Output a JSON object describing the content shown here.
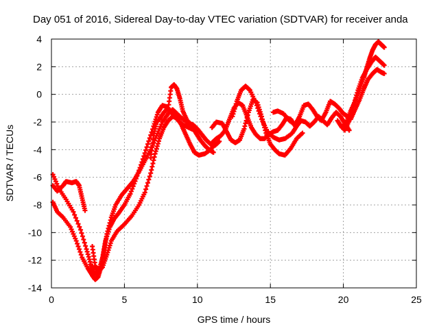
{
  "chart_data": {
    "type": "scatter",
    "title": "Day 051 of 2016, Sidereal Day-to-day VTEC variation (SDTVAR) for receiver anda",
    "xlabel": "GPS time / hours",
    "ylabel": "SDTVAR / TECUs",
    "xlim": [
      0,
      25
    ],
    "ylim": [
      -14,
      4
    ],
    "xticks": [
      0,
      5,
      10,
      15,
      20,
      25
    ],
    "yticks": [
      -14,
      -12,
      -10,
      -8,
      -6,
      -4,
      -2,
      0,
      2,
      4
    ],
    "grid": true,
    "marker": "plus",
    "color": "#ff0000",
    "series": [
      {
        "x": [
          0.1,
          0.4,
          0.8,
          1.0,
          1.4,
          1.7,
          1.9,
          2.1,
          2.3
        ],
        "y": [
          -6.6,
          -7.0,
          -6.6,
          -6.3,
          -6.4,
          -6.3,
          -6.6,
          -7.5,
          -8.4
        ]
      },
      {
        "x": [
          0.1,
          0.4,
          0.8,
          1.3,
          1.7,
          2.1,
          2.5,
          2.8,
          3.0,
          3.2,
          3.4,
          3.6,
          3.8,
          4.1,
          4.4,
          4.8,
          5.2,
          5.6,
          6.0,
          6.4,
          6.8,
          7.2,
          7.6,
          8.0,
          8.3,
          8.6,
          9.0,
          9.4,
          9.7,
          10.0,
          10.3,
          10.6,
          10.9,
          11.2,
          11.5
        ],
        "y": [
          -7.8,
          -8.5,
          -8.9,
          -9.6,
          -10.6,
          -11.8,
          -12.6,
          -13.1,
          -13.4,
          -13.2,
          -12.5,
          -11.3,
          -10.1,
          -8.9,
          -8.0,
          -7.3,
          -6.8,
          -6.3,
          -5.6,
          -4.8,
          -4.0,
          -3.0,
          -2.0,
          -1.4,
          -1.1,
          -1.4,
          -1.8,
          -2.1,
          -2.2,
          -2.5,
          -2.9,
          -3.3,
          -3.6,
          -3.7,
          -3.4
        ]
      },
      {
        "x": [
          0.1,
          0.5,
          1.0,
          1.5,
          2.0,
          2.4,
          2.7,
          2.9,
          3.1,
          3.3,
          3.5,
          3.7,
          4.0,
          4.3,
          4.6,
          5.0,
          5.4,
          5.8,
          6.2,
          6.6,
          7.0,
          7.3,
          7.6,
          7.9,
          8.2,
          8.6,
          9.0,
          9.4,
          9.8
        ],
        "y": [
          -5.8,
          -6.8,
          -7.6,
          -8.5,
          -9.8,
          -11.2,
          -12.3,
          -12.9,
          -13.0,
          -12.6,
          -11.8,
          -10.6,
          -9.6,
          -9.0,
          -8.6,
          -8.0,
          -7.2,
          -6.1,
          -4.9,
          -3.6,
          -2.3,
          -1.3,
          -0.8,
          -0.9,
          -1.3,
          -1.8,
          -2.2,
          -2.4,
          -2.6
        ]
      },
      {
        "x": [
          2.8,
          3.0,
          3.2,
          3.5,
          3.8,
          4.1,
          4.5,
          5.0,
          5.5,
          6.0,
          6.4,
          6.8,
          7.1,
          7.4,
          7.7,
          8.0,
          8.3,
          8.6,
          8.9,
          9.2,
          9.5,
          9.8,
          10.1,
          10.5,
          10.9,
          11.2
        ],
        "y": [
          -11.0,
          -12.4,
          -12.8,
          -12.5,
          -11.6,
          -10.6,
          -9.9,
          -9.4,
          -8.8,
          -8.0,
          -7.1,
          -5.7,
          -4.3,
          -3.2,
          -2.4,
          -1.9,
          -1.6,
          -1.7,
          -2.2,
          -2.9,
          -3.6,
          -4.2,
          -4.4,
          -4.3,
          -4.0,
          -3.6
        ]
      },
      {
        "x": [
          6.8,
          7.0,
          7.2,
          7.4,
          7.7,
          8.0,
          8.2,
          8.4,
          8.6,
          8.8,
          9.0,
          9.3,
          9.6,
          9.9,
          10.2,
          10.5,
          10.8,
          11.1
        ],
        "y": [
          -4.6,
          -3.0,
          -2.0,
          -1.8,
          -1.3,
          -1.0,
          0.5,
          0.7,
          0.4,
          -0.3,
          -1.2,
          -1.9,
          -2.2,
          -2.8,
          -3.3,
          -3.7,
          -4.0,
          -4.2
        ]
      },
      {
        "x": [
          11.0,
          11.3,
          11.6,
          11.9,
          12.2,
          12.5,
          12.8,
          13.1,
          13.4,
          13.7,
          14.0,
          14.3,
          14.6,
          14.9,
          15.2,
          15.5,
          15.8,
          16.1,
          16.4,
          16.7
        ],
        "y": [
          -3.5,
          -3.2,
          -3.0,
          -2.6,
          -1.8,
          -1.0,
          -0.6,
          -0.8,
          -1.6,
          -2.4,
          -2.9,
          -3.2,
          -3.2,
          -2.9,
          -2.7,
          -2.6,
          -2.2,
          -1.7,
          -1.8,
          -2.3
        ]
      },
      {
        "x": [
          11.0,
          11.3,
          11.7,
          12.0,
          12.3,
          12.6,
          12.9,
          13.2,
          13.5,
          13.8,
          14.1,
          14.4,
          14.7,
          15.0,
          15.3,
          15.6,
          16.0,
          16.4,
          16.8,
          17.2
        ],
        "y": [
          -2.4,
          -2.0,
          -2.1,
          -2.7,
          -3.3,
          -3.5,
          -3.3,
          -2.5,
          -1.3,
          -0.4,
          -0.6,
          -1.6,
          -2.8,
          -3.6,
          -4.0,
          -4.3,
          -4.4,
          -3.9,
          -3.2,
          -2.8
        ]
      },
      {
        "x": [
          12.4,
          12.7,
          13.0,
          13.3,
          13.6,
          14.0,
          14.4,
          14.8,
          15.2,
          15.6,
          16.0,
          16.4
        ],
        "y": [
          -1.6,
          -0.5,
          0.3,
          0.6,
          0.3,
          -0.6,
          -1.8,
          -2.7,
          -3.1,
          -3.3,
          -3.2,
          -2.9
        ]
      },
      {
        "x": [
          15.2,
          15.5,
          15.9,
          16.3,
          16.7,
          17.0,
          17.3,
          17.6,
          17.9,
          18.2,
          18.5,
          18.8,
          19.1,
          19.4,
          19.7,
          20.0,
          20.3
        ],
        "y": [
          -1.3,
          -1.2,
          -1.4,
          -1.9,
          -2.2,
          -1.6,
          -0.8,
          -0.7,
          -1.1,
          -1.6,
          -1.9,
          -1.3,
          -0.5,
          -0.7,
          -1.0,
          -1.4,
          -1.6
        ]
      },
      {
        "x": [
          16.5,
          16.8,
          17.1,
          17.4,
          17.7,
          18.0,
          18.3,
          18.6,
          18.9,
          19.2,
          19.5,
          19.8,
          20.1,
          20.4
        ],
        "y": [
          -2.8,
          -2.3,
          -1.9,
          -2.0,
          -2.3,
          -2.0,
          -1.6,
          -1.9,
          -2.2,
          -1.7,
          -1.3,
          -1.6,
          -2.1,
          -2.6
        ]
      },
      {
        "x": [
          19.6,
          19.9,
          20.2,
          20.5,
          20.8,
          21.1,
          21.4,
          21.6,
          21.8,
          22.0,
          22.2,
          22.4,
          22.6,
          22.8
        ],
        "y": [
          -1.9,
          -2.4,
          -2.0,
          -1.2,
          -0.5,
          0.3,
          1.2,
          1.9,
          2.6,
          3.2,
          3.6,
          3.8,
          3.6,
          3.4
        ]
      },
      {
        "x": [
          19.8,
          20.1,
          20.4,
          20.7,
          21.0,
          21.3,
          21.6,
          21.9,
          22.2,
          22.5,
          22.8
        ],
        "y": [
          -2.2,
          -2.6,
          -1.9,
          -0.8,
          0.3,
          1.2,
          1.8,
          2.3,
          2.7,
          2.4,
          2.1
        ]
      },
      {
        "x": [
          20.5,
          20.8,
          21.1,
          21.4,
          21.7,
          22.0,
          22.3,
          22.6,
          22.8
        ],
        "y": [
          -1.8,
          -1.1,
          -0.4,
          0.4,
          1.1,
          1.5,
          1.8,
          1.6,
          1.5
        ]
      }
    ]
  }
}
